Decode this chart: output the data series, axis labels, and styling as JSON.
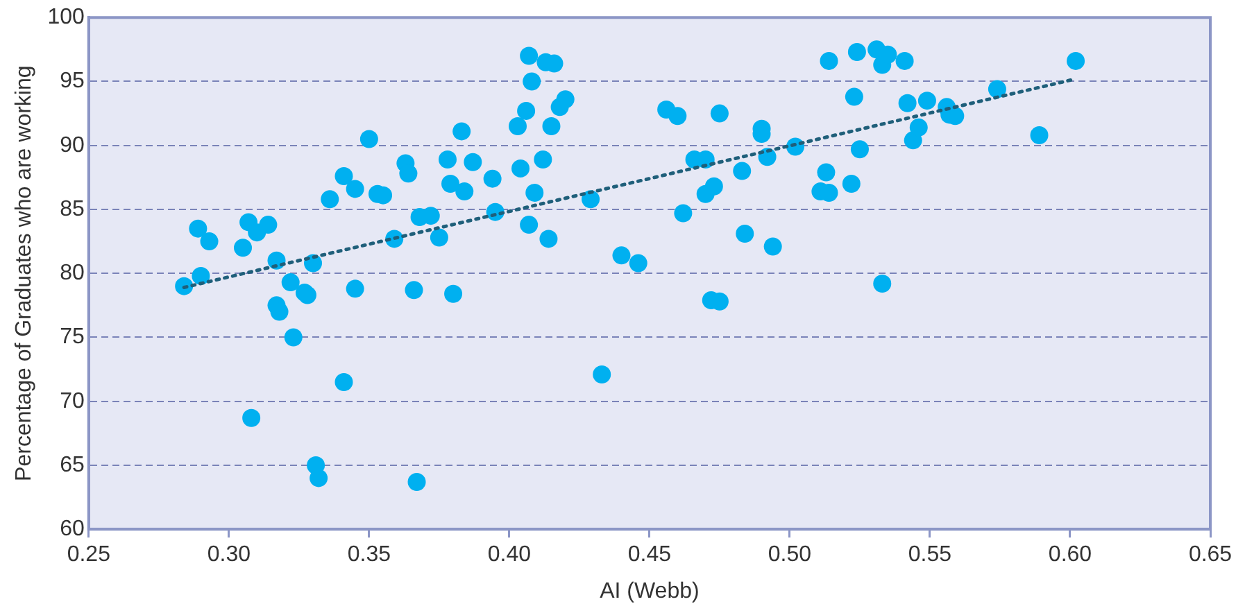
{
  "chart_data": {
    "type": "scatter",
    "xlabel": "AI (Webb)",
    "ylabel": "Percentage of Graduates who are working",
    "xlim": [
      0.25,
      0.65
    ],
    "xticks": [
      {
        "value": 0.25,
        "label": "0.25"
      },
      {
        "value": 0.3,
        "label": "0.30"
      },
      {
        "value": 0.35,
        "label": "0.35"
      },
      {
        "value": 0.4,
        "label": "0.40"
      },
      {
        "value": 0.45,
        "label": "0.45"
      },
      {
        "value": 0.5,
        "label": "0.50"
      },
      {
        "value": 0.55,
        "label": "0.55"
      },
      {
        "value": 0.6,
        "label": "0.60"
      },
      {
        "value": 0.65,
        "label": "0.65"
      }
    ],
    "ylim": [
      60,
      100
    ],
    "yticks": [
      60,
      65,
      70,
      75,
      80,
      85,
      90,
      95,
      100
    ],
    "grid": "y",
    "legend": false,
    "marker": "circle",
    "series": [
      {
        "color": "#00b0f0",
        "x": [
          0.284,
          0.289,
          0.29,
          0.293,
          0.305,
          0.307,
          0.31,
          0.314,
          0.317,
          0.317,
          0.318,
          0.322,
          0.323,
          0.327,
          0.328,
          0.33,
          0.308,
          0.331,
          0.332,
          0.336,
          0.341,
          0.341,
          0.345,
          0.345,
          0.35,
          0.353,
          0.355,
          0.359,
          0.363,
          0.364,
          0.366,
          0.367,
          0.368,
          0.372,
          0.375,
          0.378,
          0.379,
          0.38,
          0.383,
          0.384,
          0.387,
          0.394,
          0.395,
          0.403,
          0.404,
          0.406,
          0.407,
          0.407,
          0.408,
          0.409,
          0.412,
          0.413,
          0.414,
          0.415,
          0.416,
          0.418,
          0.42,
          0.429,
          0.433,
          0.44,
          0.446,
          0.456,
          0.46,
          0.462,
          0.466,
          0.47,
          0.47,
          0.472,
          0.473,
          0.475,
          0.475,
          0.483,
          0.484,
          0.49,
          0.49,
          0.492,
          0.494,
          0.502,
          0.511,
          0.513,
          0.514,
          0.514,
          0.522,
          0.523,
          0.524,
          0.525,
          0.531,
          0.533,
          0.533,
          0.535,
          0.541,
          0.542,
          0.544,
          0.546,
          0.549,
          0.556,
          0.557,
          0.559,
          0.574,
          0.589,
          0.602
        ],
        "values": [
          79,
          83.5,
          79.8,
          82.5,
          82,
          84,
          83.2,
          83.8,
          81,
          77.5,
          77,
          79.3,
          75,
          78.5,
          78.3,
          80.8,
          68.7,
          65,
          64,
          85.8,
          87.6,
          71.5,
          86.6,
          78.8,
          90.5,
          86.2,
          86.1,
          82.7,
          88.6,
          87.8,
          78.7,
          63.7,
          84.4,
          84.5,
          82.8,
          88.9,
          87,
          78.4,
          91.1,
          86.4,
          88.7,
          87.4,
          84.8,
          91.5,
          88.2,
          92.7,
          83.8,
          97,
          95,
          86.3,
          88.9,
          96.5,
          82.7,
          91.5,
          96.4,
          93,
          93.6,
          85.8,
          72.1,
          81.4,
          80.8,
          92.8,
          92.3,
          84.7,
          88.9,
          86.2,
          88.9,
          77.9,
          86.8,
          92.5,
          77.8,
          88,
          83.1,
          91.3,
          90.9,
          89.1,
          82.1,
          89.9,
          86.4,
          87.9,
          86.3,
          96.6,
          87,
          93.8,
          97.3,
          89.7,
          97.5,
          96.3,
          79.2,
          97.1,
          96.6,
          93.3,
          90.4,
          91.4,
          93.5,
          93,
          92.4,
          92.3,
          94.4,
          90.8,
          96.6
        ]
      },
      {
        "type": "line",
        "color": "#1f5f7a",
        "line_style": "dotted",
        "marker": "none",
        "x": [
          0.284,
          0.602
        ],
        "values": [
          78.9,
          95.2
        ]
      }
    ]
  }
}
